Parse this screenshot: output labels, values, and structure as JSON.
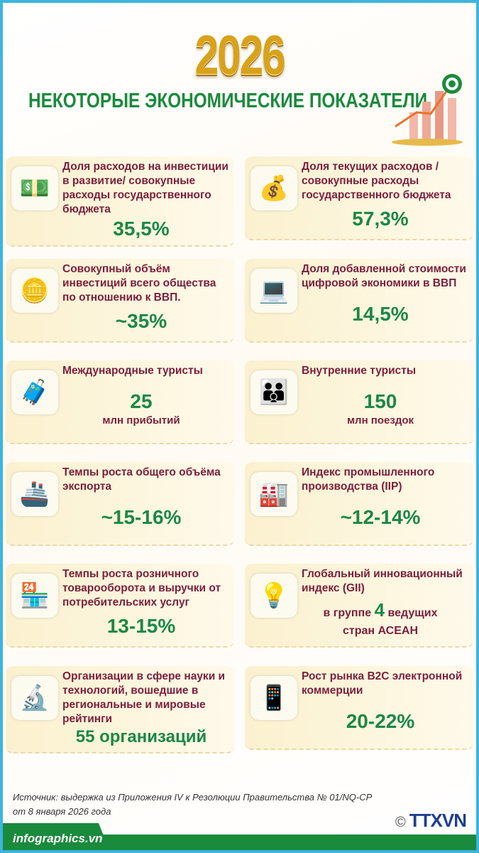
{
  "header": {
    "year": "2026",
    "title": "НЕКОТОРЫЕ ЭКОНОМИЧЕСКИЕ ПОКАЗАТЕЛИ"
  },
  "cards": [
    {
      "label": "Доля расходов на инвестиции в развитие/ совокупные расходы государственного бюджета",
      "value": "35,5%",
      "icon": "money-stack-icon"
    },
    {
      "label": "Доля текущих расходов / совокупные расходы государственного бюджета",
      "value": "57,3%",
      "icon": "money-bag-icon"
    },
    {
      "label": "Совокупный объём инвестиций всего общества по отношению к ВВП.",
      "value": "~35%",
      "icon": "coins-icon"
    },
    {
      "label": "Доля добавленной стоимости цифровой экономики в ВВП",
      "value": "14,5%",
      "icon": "digital-economy-icon"
    },
    {
      "label": "Международные туристы",
      "value": "25",
      "sub": "млн прибытий",
      "icon": "tourists-icon"
    },
    {
      "label": "Внутренние туристы",
      "value": "150",
      "sub": "млн поездок",
      "icon": "family-travel-icon"
    },
    {
      "label": "Темпы роста общего объёма экспорта",
      "value": "~15-16%",
      "icon": "cargo-ship-icon"
    },
    {
      "label": "Индекс промышленного производства (IIP)",
      "value": "~12-14%",
      "icon": "factory-icon"
    },
    {
      "label": "Темпы роста розничного товарооборота и выручки от потребительских услуг",
      "value": "13-15%",
      "icon": "shop-icon"
    },
    {
      "label": "Глобальный инновационный индекс (GII)",
      "sub_pre": "в группе",
      "value": "4",
      "sub_post": "ведущих",
      "sub2": "стран АСЕАН",
      "icon": "lightbulb-icon"
    },
    {
      "label": "Организации в сфере науки и технологий, вошедшие в региональные и мировые рейтинги",
      "value": "55 организаций",
      "icon": "science-icon"
    },
    {
      "label": "Рост рынка B2C электронной коммерции",
      "value": "20-22%",
      "icon": "ecommerce-icon"
    }
  ],
  "source": "Источник: выдержка из Приложения IV к Резолюции Правительства № 01/NQ-CP от 8 января 2026 года",
  "footer": {
    "site": "infographics.vn",
    "copyright": "©",
    "agency": "TTXVN"
  },
  "colors": {
    "title": "#1a8a3c",
    "label": "#7b1f3c",
    "value": "#1b8847",
    "border": "#3db4df"
  }
}
